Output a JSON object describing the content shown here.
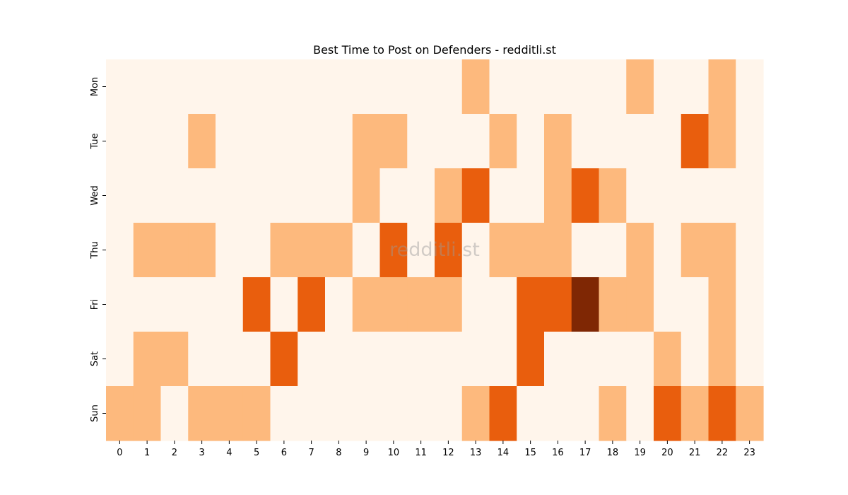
{
  "chart_data": {
    "type": "heatmap",
    "title": "Best Time to Post on Defenders - redditli.st",
    "xlabel": "",
    "ylabel": "",
    "x_categories": [
      "0",
      "1",
      "2",
      "3",
      "4",
      "5",
      "6",
      "7",
      "8",
      "9",
      "10",
      "11",
      "12",
      "13",
      "14",
      "15",
      "16",
      "17",
      "18",
      "19",
      "20",
      "21",
      "22",
      "23"
    ],
    "y_categories": [
      "Mon",
      "Tue",
      "Wed",
      "Thu",
      "Fri",
      "Sat",
      "Sun"
    ],
    "values": [
      [
        0,
        0,
        0,
        0,
        0,
        0,
        0,
        0,
        0,
        0,
        0,
        0,
        0,
        1,
        0,
        0,
        0,
        0,
        0,
        1,
        0,
        0,
        1,
        0
      ],
      [
        0,
        0,
        0,
        1,
        0,
        0,
        0,
        0,
        0,
        1,
        1,
        0,
        0,
        0,
        1,
        0,
        1,
        0,
        0,
        0,
        0,
        2,
        1,
        0
      ],
      [
        0,
        0,
        0,
        0,
        0,
        0,
        0,
        0,
        0,
        1,
        0,
        0,
        1,
        2,
        0,
        0,
        1,
        2,
        1,
        0,
        0,
        0,
        0,
        0
      ],
      [
        0,
        1,
        1,
        1,
        0,
        0,
        1,
        1,
        1,
        0,
        2,
        0,
        2,
        0,
        1,
        1,
        1,
        0,
        0,
        1,
        0,
        1,
        1,
        0
      ],
      [
        0,
        0,
        0,
        0,
        0,
        2,
        0,
        2,
        0,
        1,
        1,
        1,
        1,
        0,
        0,
        2,
        2,
        3,
        1,
        1,
        0,
        0,
        1,
        0
      ],
      [
        0,
        1,
        1,
        0,
        0,
        0,
        2,
        0,
        0,
        0,
        0,
        0,
        0,
        0,
        0,
        2,
        0,
        0,
        0,
        0,
        1,
        0,
        1,
        0
      ],
      [
        1,
        1,
        0,
        1,
        1,
        1,
        0,
        0,
        0,
        0,
        0,
        0,
        0,
        1,
        2,
        0,
        0,
        0,
        1,
        0,
        2,
        1,
        2,
        1
      ]
    ],
    "colormap": [
      "#fff5eb",
      "#fdb97d",
      "#e95e0d",
      "#7f2704"
    ],
    "grid": false,
    "colorbar": false,
    "watermark": "redditli.st"
  }
}
